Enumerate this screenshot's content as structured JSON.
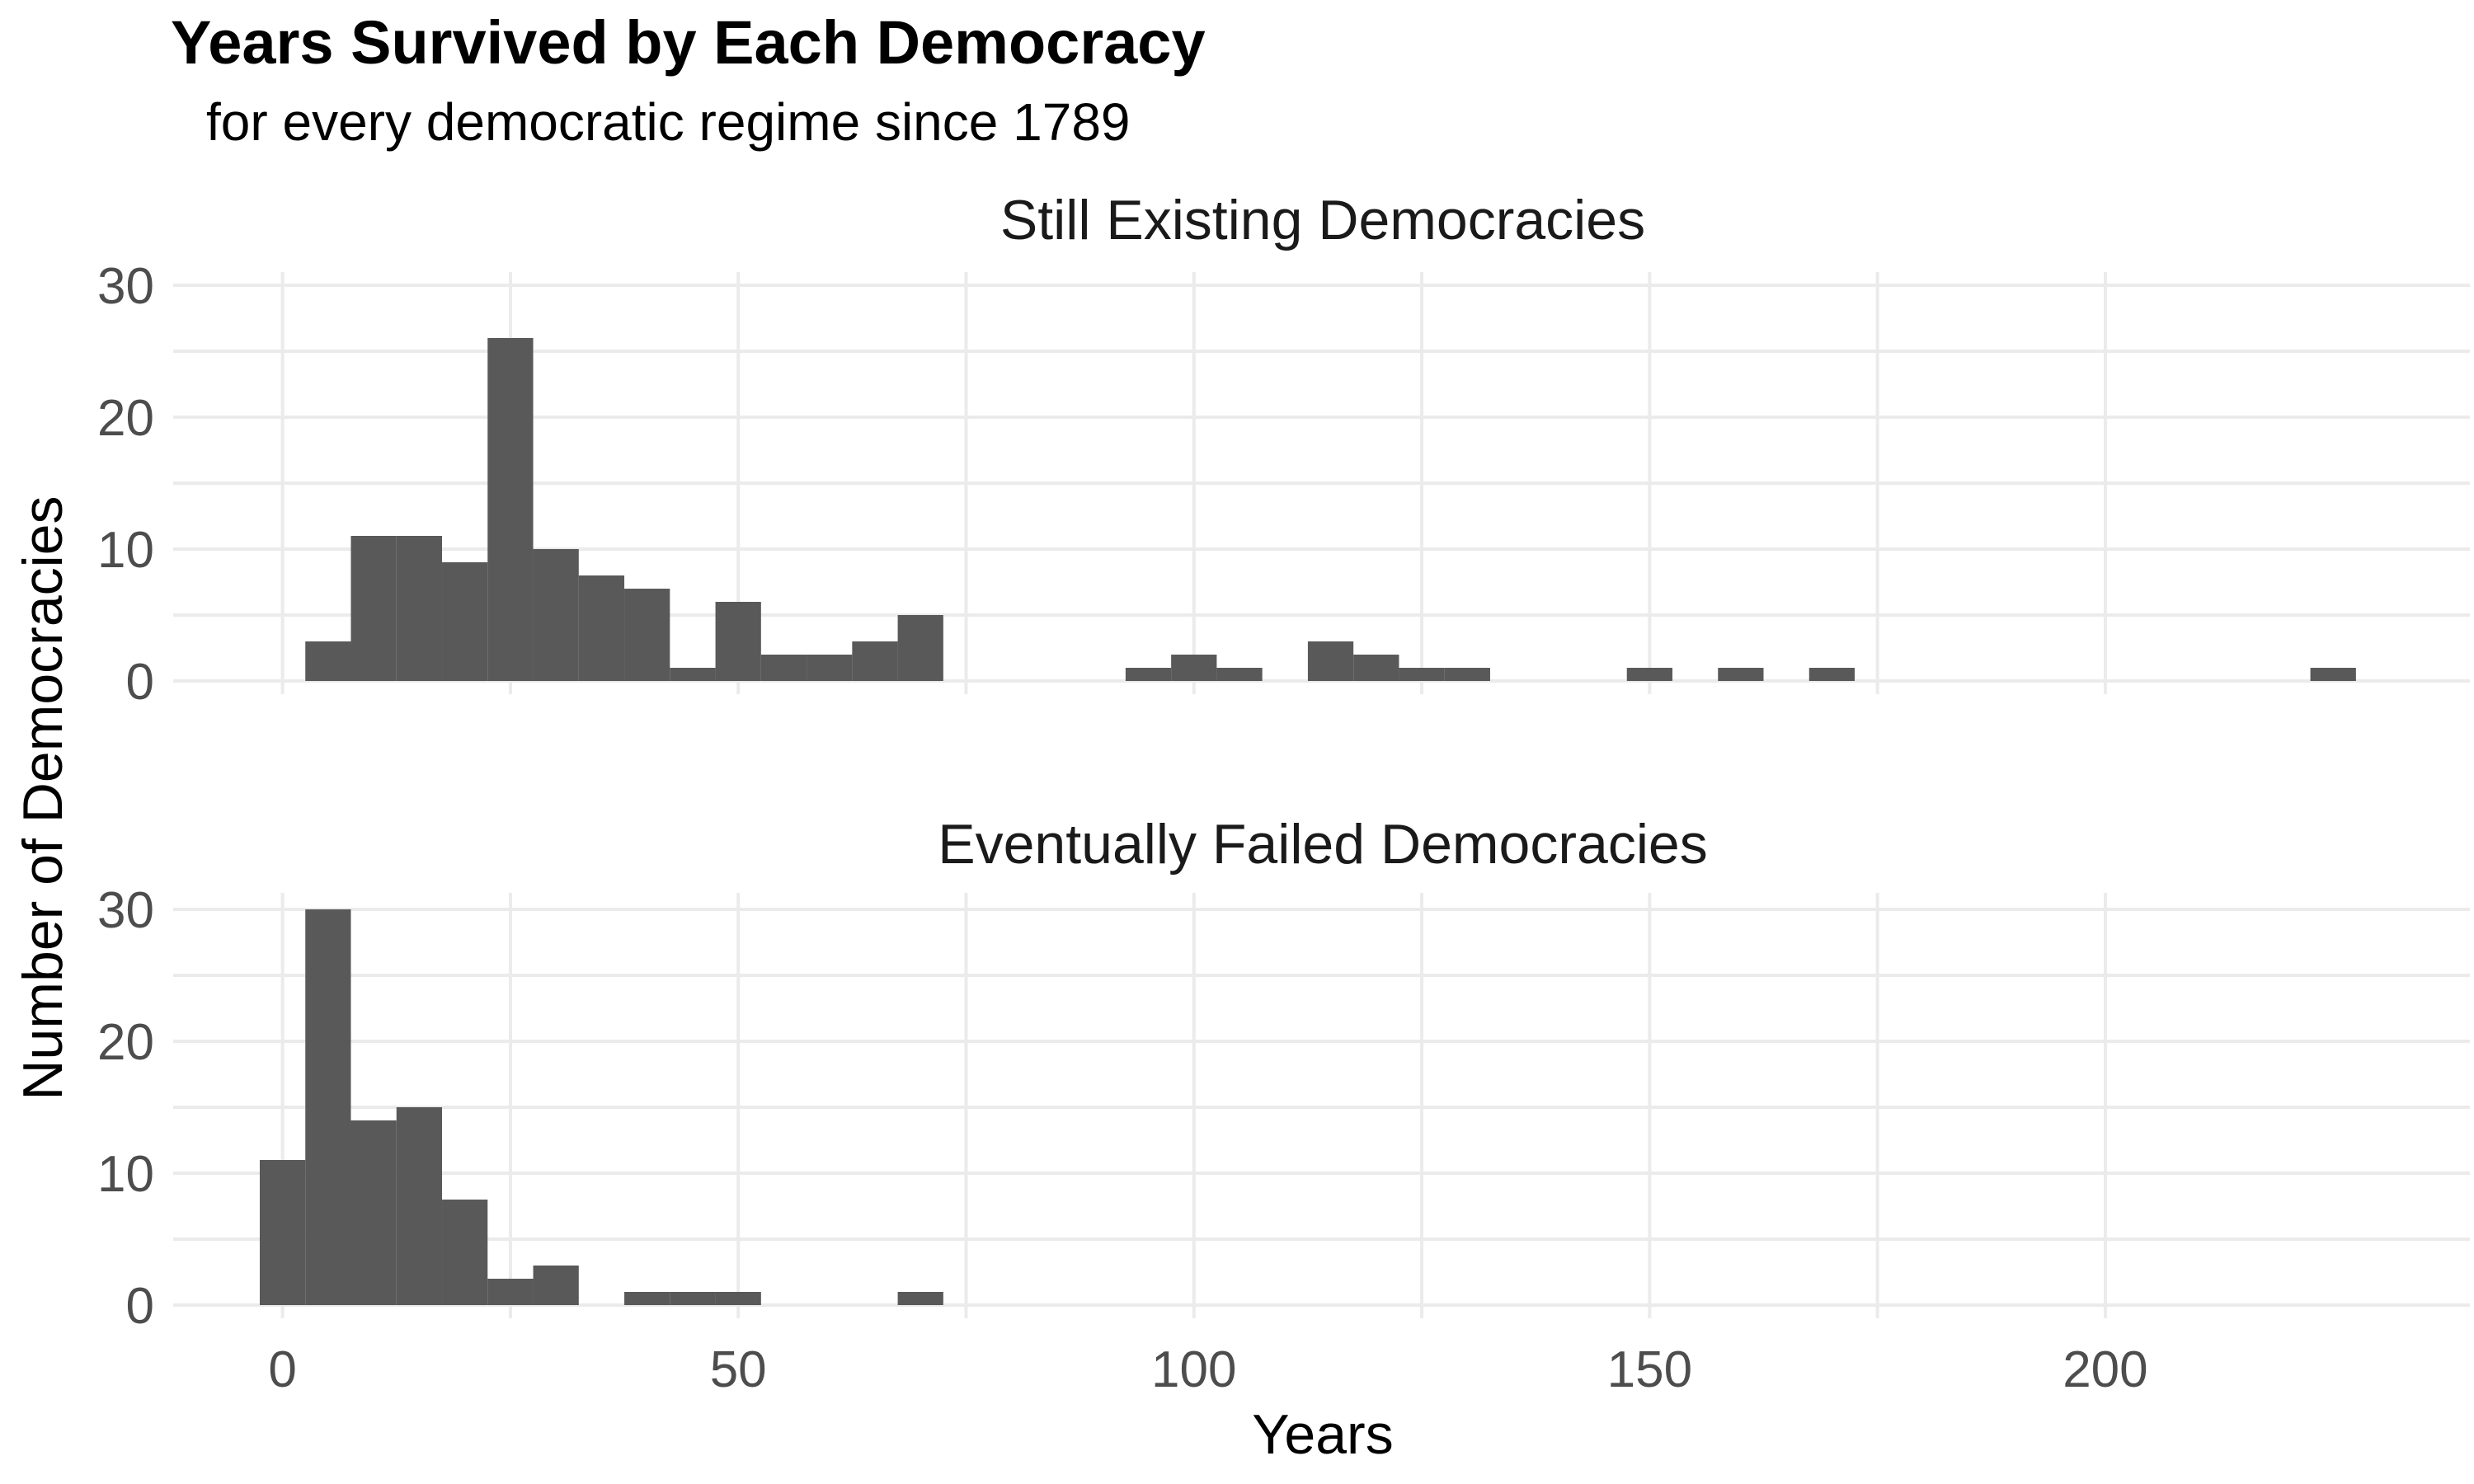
{
  "chart_data": {
    "type": "bar",
    "title": "Years Survived by Each Democracy",
    "subtitle": "for every democratic regime since 1789",
    "xlabel": "Years",
    "ylabel": "Number of Democracies",
    "xlim": [
      -12,
      240
    ],
    "ylim": [
      0,
      30
    ],
    "x_ticks": [
      {
        "value": 0,
        "label": "0"
      },
      {
        "value": 50,
        "label": "50"
      },
      {
        "value": 100,
        "label": "100"
      },
      {
        "value": 150,
        "label": "150"
      },
      {
        "value": 200,
        "label": "200"
      }
    ],
    "y_ticks": [
      {
        "value": 0,
        "label": "0"
      },
      {
        "value": 10,
        "label": "10"
      },
      {
        "value": 20,
        "label": "20"
      },
      {
        "value": 30,
        "label": "30"
      }
    ],
    "grid": true,
    "bin_width": 5,
    "panels": [
      {
        "label": "Still Existing Democracies",
        "bins": [
          {
            "center": 5,
            "count": 3
          },
          {
            "center": 10,
            "count": 11
          },
          {
            "center": 15,
            "count": 11
          },
          {
            "center": 20,
            "count": 9
          },
          {
            "center": 25,
            "count": 26
          },
          {
            "center": 30,
            "count": 10
          },
          {
            "center": 35,
            "count": 8
          },
          {
            "center": 40,
            "count": 7
          },
          {
            "center": 45,
            "count": 1
          },
          {
            "center": 50,
            "count": 6
          },
          {
            "center": 55,
            "count": 2
          },
          {
            "center": 60,
            "count": 2
          },
          {
            "center": 65,
            "count": 3
          },
          {
            "center": 70,
            "count": 5
          },
          {
            "center": 95,
            "count": 1
          },
          {
            "center": 100,
            "count": 2
          },
          {
            "center": 105,
            "count": 1
          },
          {
            "center": 115,
            "count": 3
          },
          {
            "center": 120,
            "count": 2
          },
          {
            "center": 125,
            "count": 1
          },
          {
            "center": 130,
            "count": 1
          },
          {
            "center": 150,
            "count": 1
          },
          {
            "center": 160,
            "count": 1
          },
          {
            "center": 170,
            "count": 1
          },
          {
            "center": 225,
            "count": 1
          }
        ]
      },
      {
        "label": "Eventually Failed Democracies",
        "bins": [
          {
            "center": 0,
            "count": 11
          },
          {
            "center": 5,
            "count": 30
          },
          {
            "center": 10,
            "count": 14
          },
          {
            "center": 15,
            "count": 15
          },
          {
            "center": 20,
            "count": 8
          },
          {
            "center": 25,
            "count": 2
          },
          {
            "center": 30,
            "count": 3
          },
          {
            "center": 40,
            "count": 1
          },
          {
            "center": 45,
            "count": 1
          },
          {
            "center": 50,
            "count": 1
          },
          {
            "center": 70,
            "count": 1
          }
        ]
      }
    ]
  }
}
